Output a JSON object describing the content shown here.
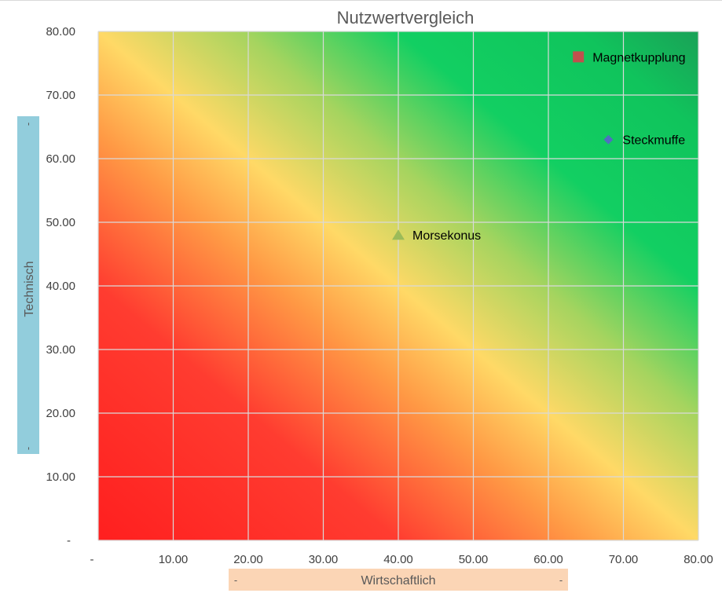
{
  "chart_data": {
    "type": "scatter",
    "title": "Nutzwertvergleich",
    "xlabel": "Wirtschaftlich",
    "ylabel": "Technisch",
    "xlabel_end_markers": [
      "-",
      "-"
    ],
    "ylabel_end_markers": [
      "-",
      "-"
    ],
    "xlim": [
      0,
      80
    ],
    "ylim": [
      0,
      80
    ],
    "x_tick_labels": [
      "-",
      "10.00",
      "20.00",
      "30.00",
      "40.00",
      "50.00",
      "60.00",
      "70.00",
      "80.00"
    ],
    "y_tick_labels": [
      "-",
      "10.00",
      "20.00",
      "30.00",
      "40.00",
      "50.00",
      "60.00",
      "70.00",
      "80.00"
    ],
    "grid": true,
    "background": "diagonal gradient from red (low-left) through yellow (diagonal) to green (upper-right)",
    "gradient_colors": [
      "#ff2020",
      "#ff9a40",
      "#ffd966",
      "#12d060",
      "#18a858"
    ],
    "points": [
      {
        "label": "Magnetkupplung",
        "x": 64,
        "y": 76,
        "marker": "square",
        "color": "#c0504d"
      },
      {
        "label": "Steckmuffe",
        "x": 68,
        "y": 63,
        "marker": "diamond",
        "color": "#4f6fc0"
      },
      {
        "label": "Morsekonus",
        "x": 40,
        "y": 48,
        "marker": "triangle",
        "color": "#9bbb59"
      }
    ],
    "axis_title_box_colors": {
      "x": "#fbd5b5",
      "y": "#92cddc"
    }
  }
}
